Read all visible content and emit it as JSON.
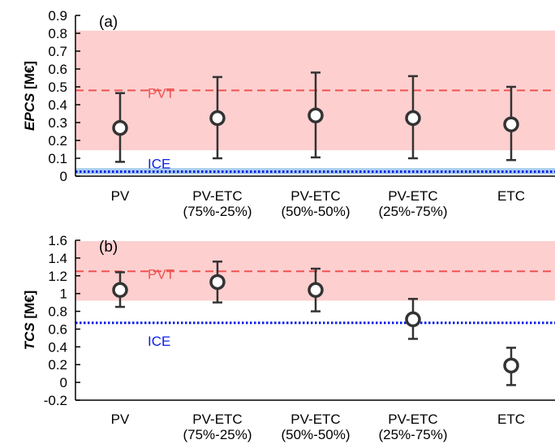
{
  "chart_data": [
    {
      "panel_label": "(a)",
      "type": "errorbar",
      "ylabel_prefix": "EPCS",
      "ylabel_unit": " [M€]",
      "ylim": [
        0,
        0.9
      ],
      "yticks": [
        "0",
        "0.1",
        "0.2",
        "0.3",
        "0.4",
        "0.5",
        "0.6",
        "0.7",
        "0.8",
        "0.9"
      ],
      "categories": [
        [
          "PV"
        ],
        [
          "PV-ETC",
          "(75%-25%)"
        ],
        [
          "PV-ETC",
          "(50%-50%)"
        ],
        [
          "PV-ETC",
          "(25%-75%)"
        ],
        [
          "ETC"
        ]
      ],
      "values": [
        0.27,
        0.325,
        0.34,
        0.325,
        0.29
      ],
      "err_low": [
        0.08,
        0.1,
        0.105,
        0.1,
        0.09
      ],
      "err_high": [
        0.465,
        0.555,
        0.58,
        0.56,
        0.5
      ],
      "references": [
        {
          "label": "PVT",
          "value": 0.48,
          "band": [
            0.145,
            0.815
          ],
          "color": "#ef5350",
          "band_color": "#fdcfcf",
          "style": "dashed"
        },
        {
          "label": "ICE",
          "value": 0.025,
          "band": [
            0.01,
            0.045
          ],
          "color": "#0a1ee6",
          "band_color": "#a9cdee",
          "style": "dotted"
        }
      ]
    },
    {
      "panel_label": "(b)",
      "type": "errorbar",
      "ylabel_prefix": "TCS",
      "ylabel_unit": " [M€]",
      "ylim": [
        -0.2,
        1.6
      ],
      "yticks": [
        "-0.2",
        "0",
        "0.2",
        "0.4",
        "0.6",
        "0.8",
        "1",
        "1.2",
        "1.4",
        "1.6"
      ],
      "categories": [
        [
          "PV"
        ],
        [
          "PV-ETC",
          "(75%-25%)"
        ],
        [
          "PV-ETC",
          "(50%-50%)"
        ],
        [
          "PV-ETC",
          "(25%-75%)"
        ],
        [
          "ETC"
        ]
      ],
      "values": [
        1.04,
        1.13,
        1.04,
        0.71,
        0.19
      ],
      "err_low": [
        0.85,
        0.9,
        0.8,
        0.49,
        -0.03
      ],
      "err_high": [
        1.24,
        1.36,
        1.28,
        0.94,
        0.39
      ],
      "references": [
        {
          "label": "PVT",
          "value": 1.25,
          "band": [
            0.92,
            1.59
          ],
          "color": "#ef5350",
          "band_color": "#fdcfcf",
          "style": "dashed"
        },
        {
          "label": "ICE",
          "value": 0.67,
          "band": null,
          "color": "#0a1ee6",
          "band_color": null,
          "style": "dotted"
        }
      ]
    }
  ]
}
